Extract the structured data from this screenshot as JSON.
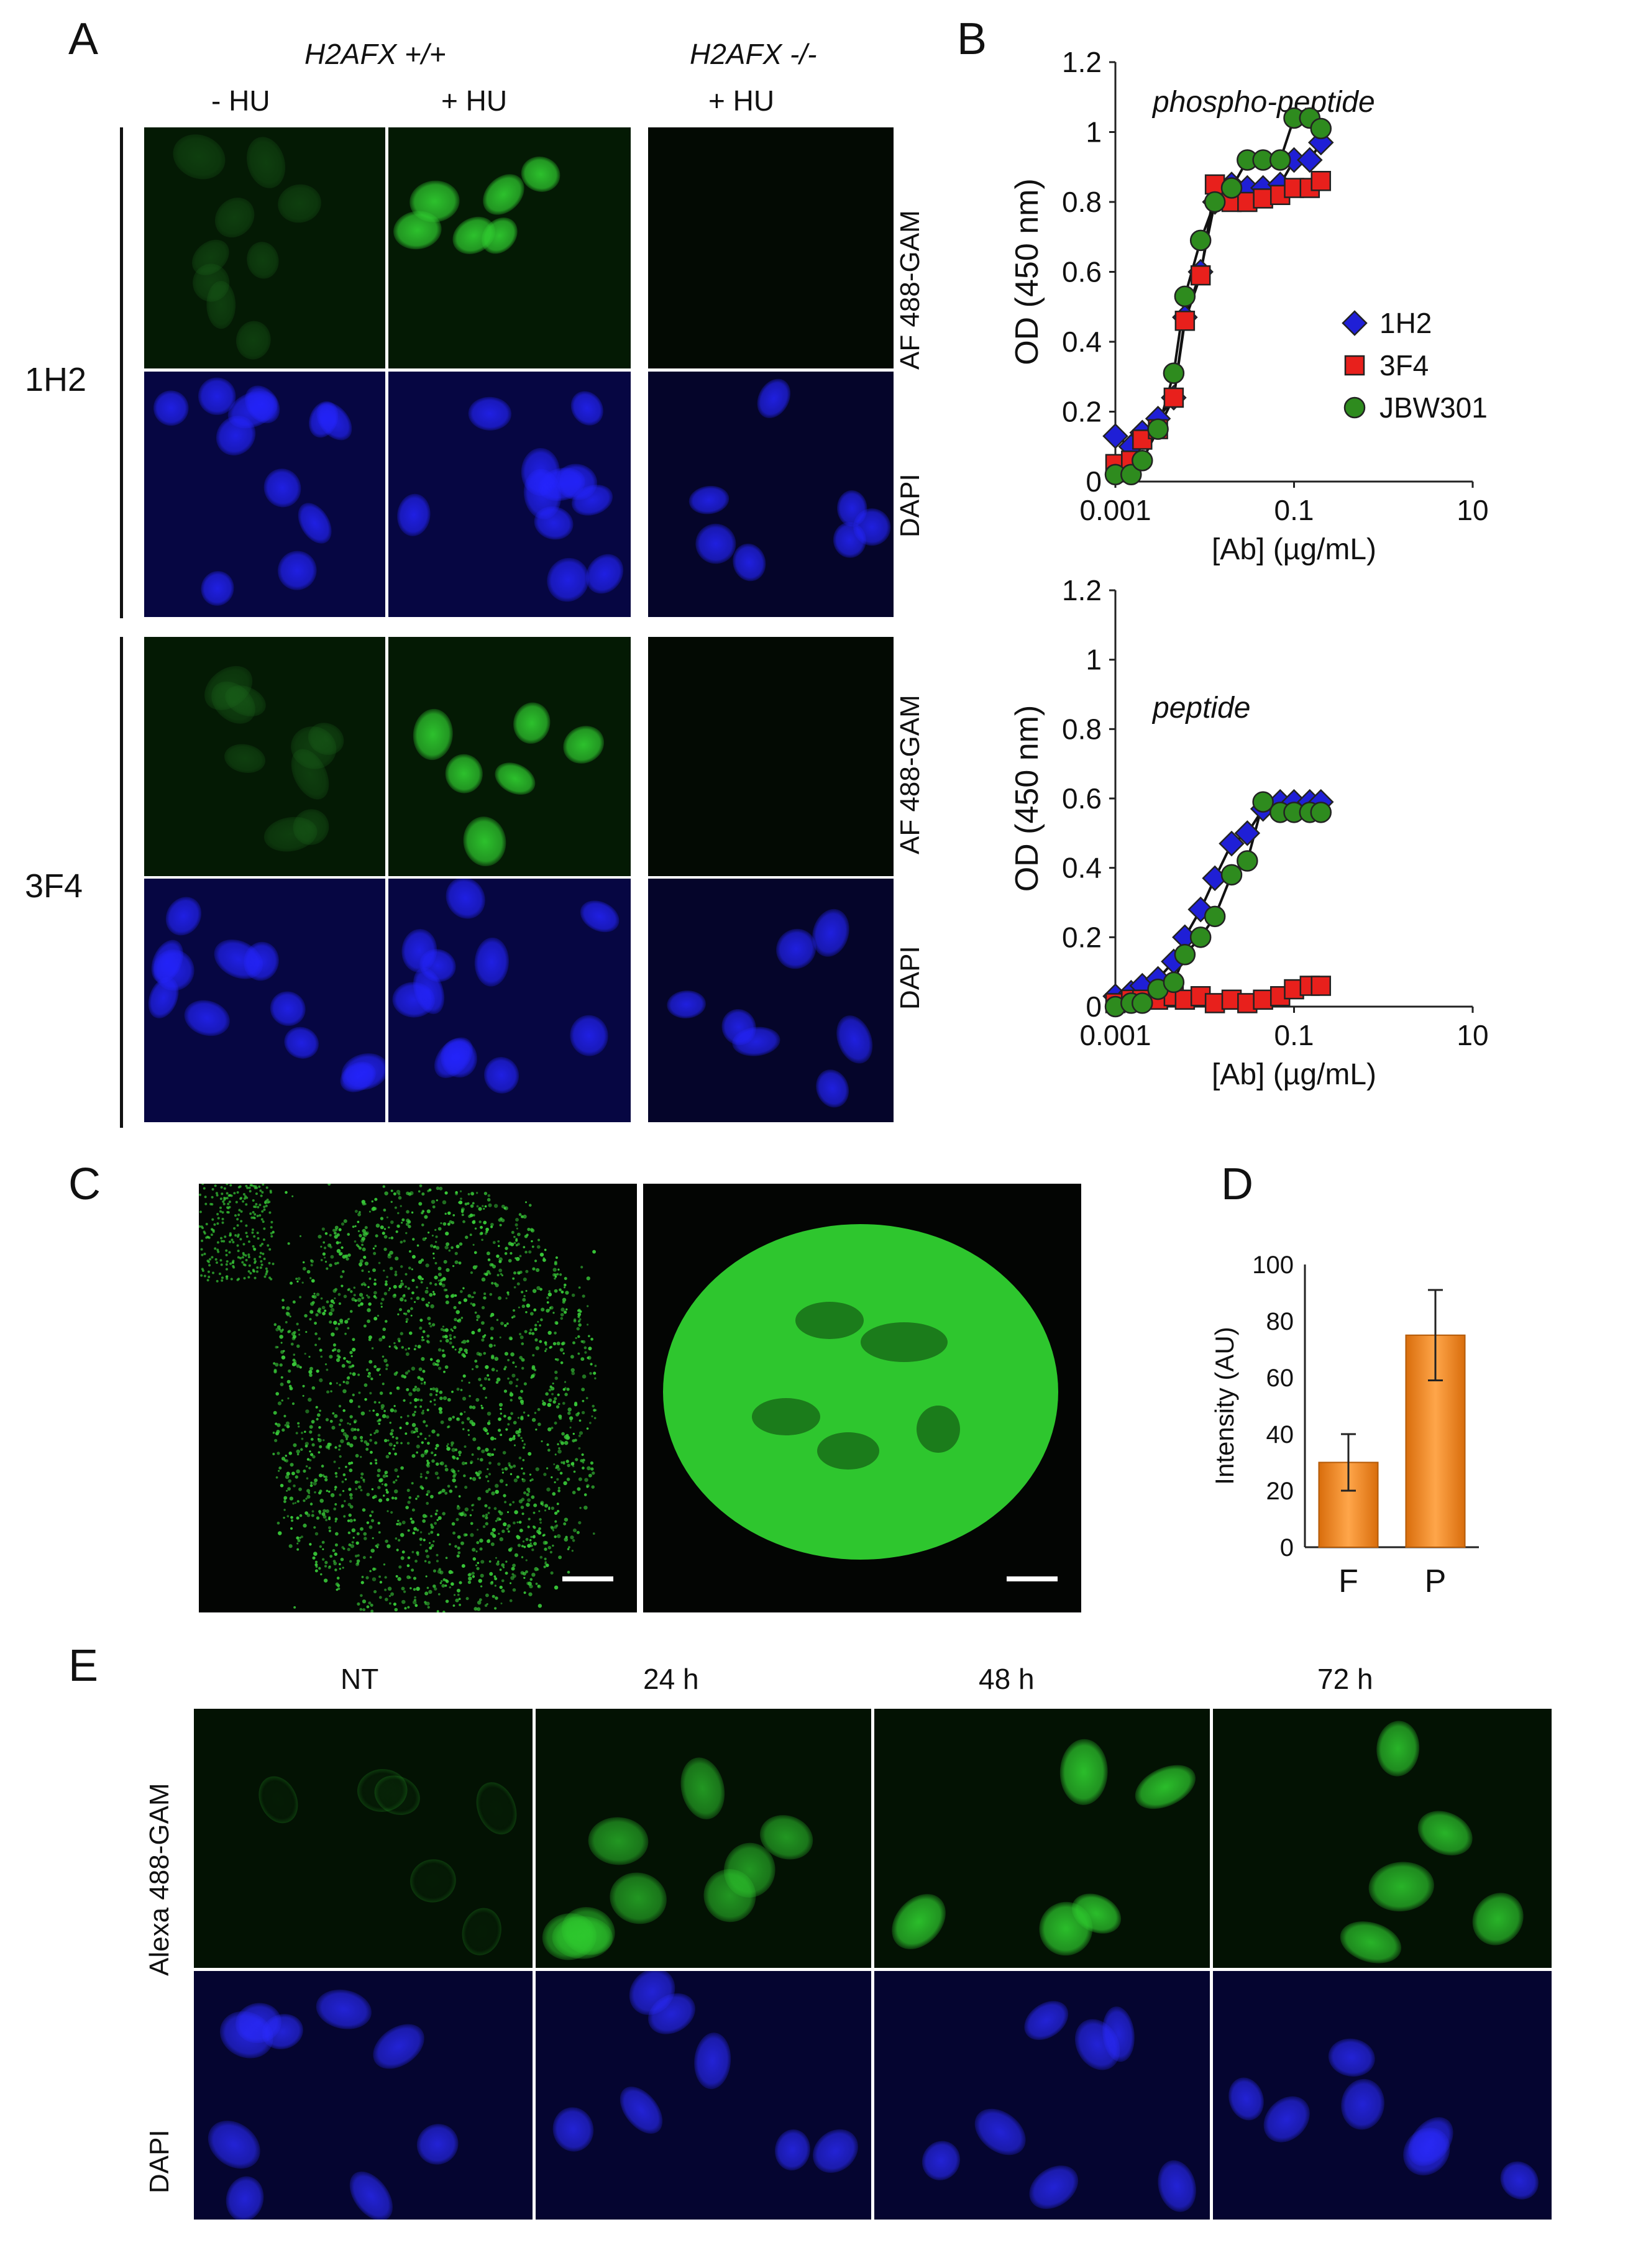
{
  "panels": {
    "A": "A",
    "B": "B",
    "C": "C",
    "D": "D",
    "E": "E"
  },
  "panel_a": {
    "genotype_wt": "H2AFX +/+",
    "genotype_ko": "H2AFX -/-",
    "col_minus_hu": "- HU",
    "col_plus_hu_wt": "+ HU",
    "col_plus_hu_ko": "+ HU",
    "row_1h2": "1H2",
    "row_3f4": "3F4",
    "stain_af488_top": "AF 488-GAM",
    "stain_dapi_top": "DAPI",
    "stain_af488_bottom": "AF 488-GAM",
    "stain_dapi_bottom": "DAPI"
  },
  "panel_c": {},
  "panel_e": {
    "cols": [
      "NT",
      "24 h",
      "48 h",
      "72 h"
    ],
    "row_alexa": "Alexa 488-GAM",
    "row_dapi": "DAPI"
  },
  "chart_data": [
    {
      "type": "scatter",
      "panel": "B-top",
      "annotation": "phospho-peptide",
      "xlabel": "[Ab] (µg/mL)",
      "ylabel": "OD (450 nm)",
      "xscale": "log",
      "xlim": [
        0.001,
        10
      ],
      "ylim": [
        0,
        1.2
      ],
      "xticks": [
        "0.001",
        "0.1",
        "10"
      ],
      "yticks": [
        "0",
        "0.2",
        "0.4",
        "0.6",
        "0.8",
        "1",
        "1.2"
      ],
      "legend_position": "right",
      "x": [
        0.001,
        0.0015,
        0.002,
        0.003,
        0.0045,
        0.006,
        0.009,
        0.013,
        0.02,
        0.03,
        0.045,
        0.07,
        0.1,
        0.15,
        0.2
      ],
      "series": [
        {
          "name": "1H2",
          "marker": "diamond",
          "color": "#1f1fd6",
          "values": [
            0.13,
            0.1,
            0.14,
            0.18,
            0.24,
            0.47,
            0.6,
            0.8,
            0.85,
            0.84,
            0.84,
            0.85,
            0.92,
            0.92,
            0.97
          ]
        },
        {
          "name": "3F4",
          "marker": "square",
          "color": "#e8201c",
          "values": [
            0.05,
            0.06,
            0.12,
            0.15,
            0.24,
            0.46,
            0.59,
            0.85,
            0.8,
            0.8,
            0.81,
            0.82,
            0.84,
            0.84,
            0.86
          ]
        },
        {
          "name": "JBW301",
          "marker": "circle",
          "color": "#2e8b1e",
          "values": [
            0.02,
            0.02,
            0.06,
            0.15,
            0.31,
            0.53,
            0.69,
            0.8,
            0.84,
            0.92,
            0.92,
            0.92,
            1.04,
            1.04,
            1.01
          ]
        }
      ]
    },
    {
      "type": "scatter",
      "panel": "B-bottom",
      "annotation": "peptide",
      "xlabel": "[Ab] (µg/mL)",
      "ylabel": "OD (450 nm)",
      "xscale": "log",
      "xlim": [
        0.001,
        10
      ],
      "ylim": [
        0,
        1.2
      ],
      "xticks": [
        "0.001",
        "0.1",
        "10"
      ],
      "yticks": [
        "0",
        "0.2",
        "0.4",
        "0.6",
        "0.8",
        "1",
        "1.2"
      ],
      "x": [
        0.001,
        0.0015,
        0.002,
        0.003,
        0.0045,
        0.006,
        0.009,
        0.013,
        0.02,
        0.03,
        0.045,
        0.07,
        0.1,
        0.15,
        0.2
      ],
      "series": [
        {
          "name": "1H2",
          "marker": "diamond",
          "color": "#1f1fd6",
          "values": [
            0.03,
            0.04,
            0.06,
            0.08,
            0.13,
            0.2,
            0.28,
            0.37,
            0.47,
            0.5,
            0.57,
            0.59,
            0.59,
            0.59,
            0.59
          ]
        },
        {
          "name": "3F4",
          "marker": "square",
          "color": "#e8201c",
          "values": [
            0.01,
            0.02,
            0.02,
            0.02,
            0.03,
            0.02,
            0.03,
            0.01,
            0.02,
            0.01,
            0.02,
            0.03,
            0.05,
            0.06,
            0.06
          ]
        },
        {
          "name": "JBW301",
          "marker": "circle",
          "color": "#2e8b1e",
          "values": [
            0.0,
            0.01,
            0.01,
            0.05,
            0.07,
            0.15,
            0.2,
            0.26,
            0.38,
            0.42,
            0.59,
            0.56,
            0.56,
            0.56,
            0.56
          ]
        }
      ]
    },
    {
      "type": "bar",
      "panel": "D",
      "ylabel": "Intensity (AU)",
      "categories": [
        "F",
        "P"
      ],
      "values": [
        30,
        75
      ],
      "errors": [
        10,
        16
      ],
      "ylim": [
        0,
        100
      ],
      "yticks": [
        "0",
        "20",
        "40",
        "60",
        "80",
        "100"
      ],
      "color": "#f08a1e"
    }
  ]
}
